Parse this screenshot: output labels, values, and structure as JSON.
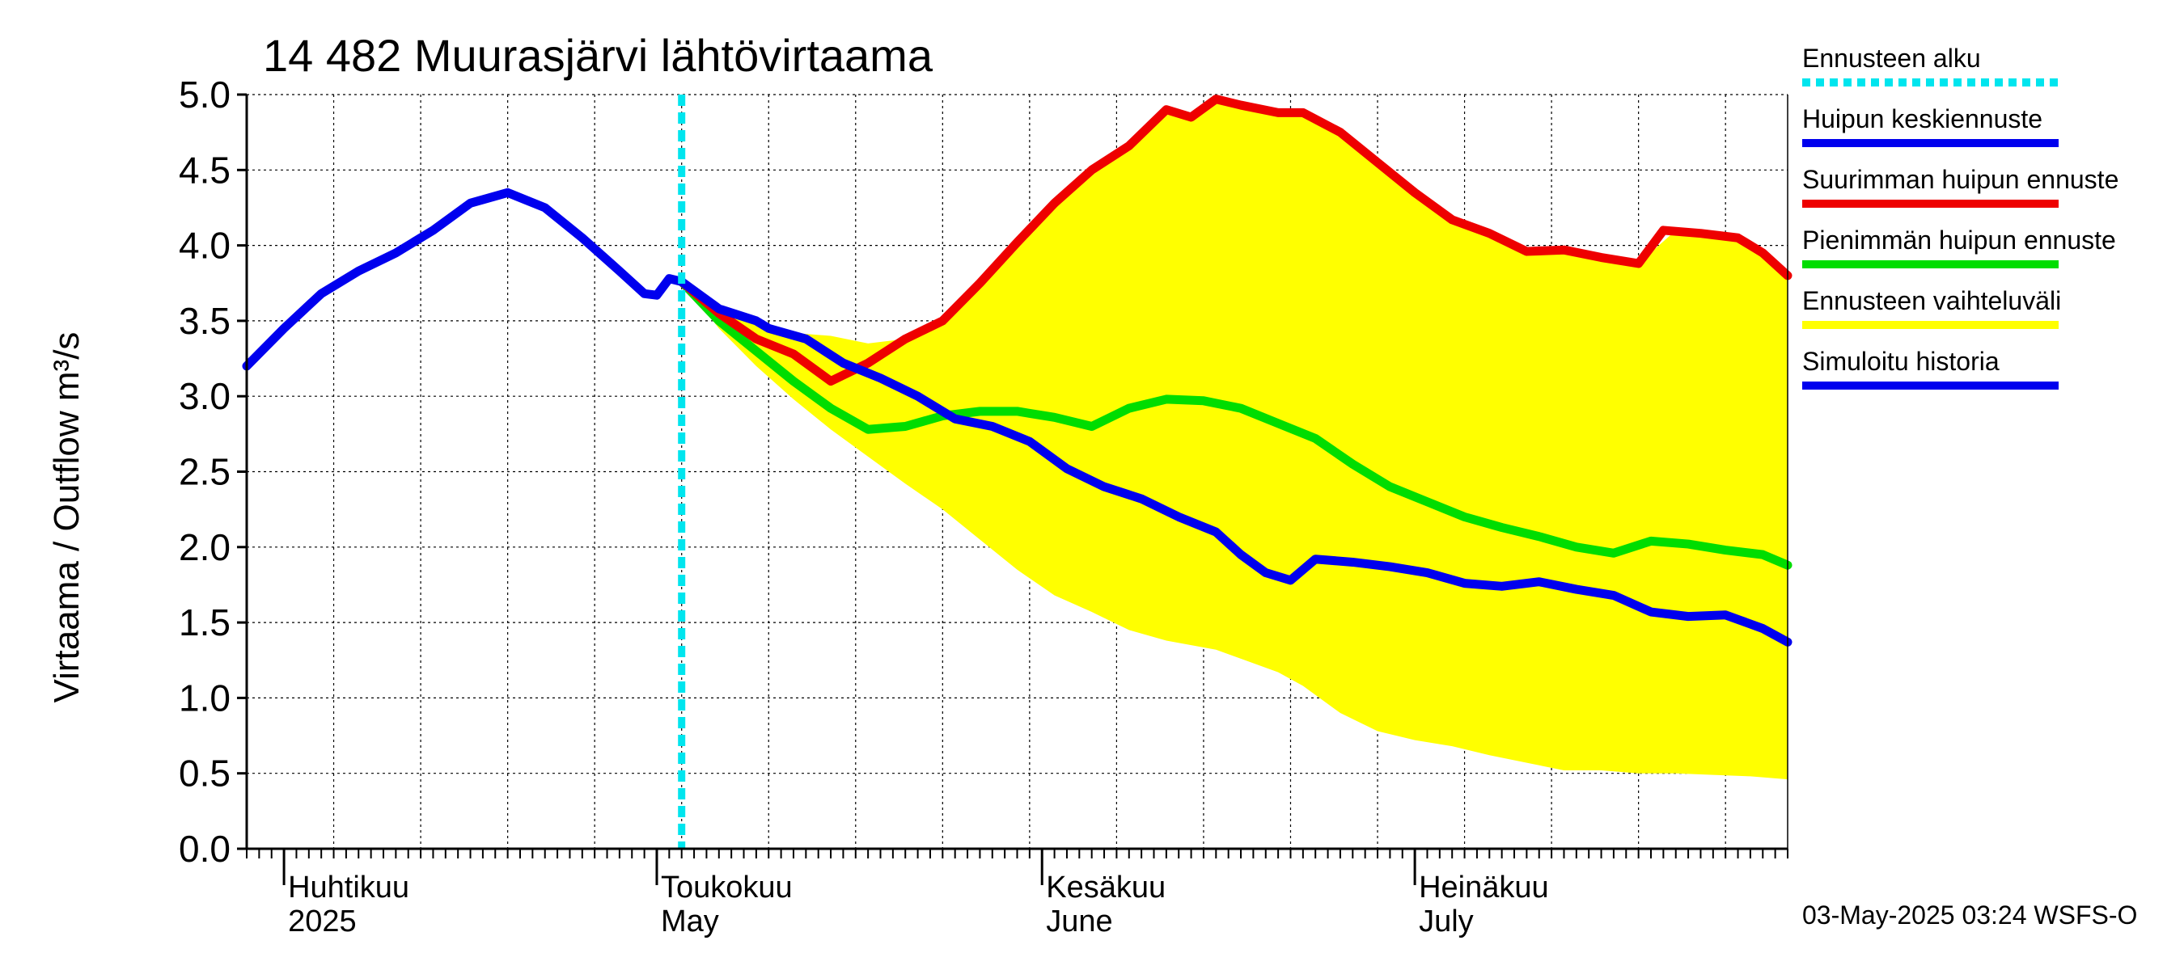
{
  "chart_data": {
    "type": "line",
    "title": "14 482 Muurasjärvi lähtövirtaama",
    "ylabel": "Virtaama / Outflow    m³/s",
    "xlabel": "",
    "ylim": [
      0.0,
      5.0
    ],
    "yticks": [
      "0.0",
      "0.5",
      "1.0",
      "1.5",
      "2.0",
      "2.5",
      "3.0",
      "3.5",
      "4.0",
      "4.5",
      "5.0"
    ],
    "x_range": [
      "2025-03-29",
      "2025-07-31"
    ],
    "x_is_date": true,
    "grid": true,
    "legend_position": "right",
    "months": [
      {
        "date": "2025-04-01",
        "fi": "Huhtikuu",
        "en": "2025"
      },
      {
        "date": "2025-05-01",
        "fi": "Toukokuu",
        "en": "May"
      },
      {
        "date": "2025-06-01",
        "fi": "Kesäkuu",
        "en": "June"
      },
      {
        "date": "2025-07-01",
        "fi": "Heinäkuu",
        "en": "July"
      }
    ],
    "forecast_start": "2025-05-03",
    "timestamp": "03-May-2025 03:24 WSFS-O",
    "legend": [
      {
        "label": "Ennusteen alku",
        "color": "#00e5ee",
        "style": "dotted"
      },
      {
        "label": "Huipun keskiennuste",
        "color": "#0000ee",
        "style": "solid"
      },
      {
        "label": "Suurimman huipun ennuste",
        "color": "#ee0000",
        "style": "solid"
      },
      {
        "label": "Pienimmän huipun ennuste",
        "color": "#00dd00",
        "style": "solid"
      },
      {
        "label": "Ennusteen vaihteluväli",
        "color": "#ffff00",
        "style": "band"
      },
      {
        "label": "Simuloitu historia",
        "color": "#0000ee",
        "style": "solid"
      }
    ],
    "series": [
      {
        "name": "Simuloitu historia",
        "color": "#0000ee",
        "x": [
          "2025-03-29",
          "2025-04-01",
          "2025-04-04",
          "2025-04-07",
          "2025-04-10",
          "2025-04-13",
          "2025-04-16",
          "2025-04-19",
          "2025-04-22",
          "2025-04-25",
          "2025-04-28",
          "2025-04-30",
          "2025-05-01",
          "2025-05-02",
          "2025-05-03"
        ],
        "y": [
          3.2,
          3.45,
          3.68,
          3.83,
          3.95,
          4.1,
          4.28,
          4.35,
          4.25,
          4.05,
          3.83,
          3.68,
          3.67,
          3.78,
          3.76
        ]
      },
      {
        "name": "Huipun keskiennuste",
        "color": "#0000ee",
        "x": [
          "2025-05-03",
          "2025-05-06",
          "2025-05-09",
          "2025-05-10",
          "2025-05-13",
          "2025-05-16",
          "2025-05-19",
          "2025-05-22",
          "2025-05-25",
          "2025-05-28",
          "2025-05-31",
          "2025-06-03",
          "2025-06-06",
          "2025-06-09",
          "2025-06-12",
          "2025-06-15",
          "2025-06-17",
          "2025-06-19",
          "2025-06-21",
          "2025-06-23",
          "2025-06-26",
          "2025-06-29",
          "2025-07-02",
          "2025-07-05",
          "2025-07-08",
          "2025-07-11",
          "2025-07-14",
          "2025-07-17",
          "2025-07-20",
          "2025-07-23",
          "2025-07-26",
          "2025-07-29",
          "2025-07-31"
        ],
        "y": [
          3.76,
          3.58,
          3.5,
          3.45,
          3.38,
          3.22,
          3.12,
          3.0,
          2.85,
          2.8,
          2.7,
          2.52,
          2.4,
          2.32,
          2.2,
          2.1,
          1.95,
          1.83,
          1.78,
          1.92,
          1.9,
          1.87,
          1.83,
          1.76,
          1.74,
          1.77,
          1.72,
          1.68,
          1.57,
          1.54,
          1.55,
          1.46,
          1.37
        ]
      },
      {
        "name": "Suurimman huipun ennuste",
        "color": "#ee0000",
        "x": [
          "2025-05-03",
          "2025-05-06",
          "2025-05-09",
          "2025-05-12",
          "2025-05-15",
          "2025-05-18",
          "2025-05-21",
          "2025-05-24",
          "2025-05-27",
          "2025-05-30",
          "2025-06-02",
          "2025-06-05",
          "2025-06-08",
          "2025-06-11",
          "2025-06-13",
          "2025-06-15",
          "2025-06-17",
          "2025-06-20",
          "2025-06-22",
          "2025-06-25",
          "2025-06-28",
          "2025-07-01",
          "2025-07-04",
          "2025-07-07",
          "2025-07-10",
          "2025-07-13",
          "2025-07-16",
          "2025-07-19",
          "2025-07-21",
          "2025-07-24",
          "2025-07-27",
          "2025-07-29",
          "2025-07-31"
        ],
        "y": [
          3.76,
          3.55,
          3.38,
          3.28,
          3.1,
          3.22,
          3.38,
          3.5,
          3.75,
          4.02,
          4.28,
          4.5,
          4.66,
          4.9,
          4.85,
          4.97,
          4.93,
          4.88,
          4.88,
          4.75,
          4.55,
          4.35,
          4.17,
          4.08,
          3.96,
          3.97,
          3.92,
          3.88,
          4.1,
          4.08,
          4.05,
          3.95,
          3.8
        ]
      },
      {
        "name": "Pienimmän huipun ennuste",
        "color": "#00dd00",
        "x": [
          "2025-05-03",
          "2025-05-06",
          "2025-05-09",
          "2025-05-12",
          "2025-05-15",
          "2025-05-18",
          "2025-05-21",
          "2025-05-24",
          "2025-05-27",
          "2025-05-30",
          "2025-06-02",
          "2025-06-05",
          "2025-06-08",
          "2025-06-11",
          "2025-06-14",
          "2025-06-17",
          "2025-06-20",
          "2025-06-23",
          "2025-06-26",
          "2025-06-29",
          "2025-07-02",
          "2025-07-05",
          "2025-07-08",
          "2025-07-11",
          "2025-07-14",
          "2025-07-17",
          "2025-07-20",
          "2025-07-23",
          "2025-07-26",
          "2025-07-29",
          "2025-07-31"
        ],
        "y": [
          3.76,
          3.5,
          3.3,
          3.1,
          2.92,
          2.78,
          2.8,
          2.87,
          2.9,
          2.9,
          2.86,
          2.8,
          2.92,
          2.98,
          2.97,
          2.92,
          2.82,
          2.72,
          2.55,
          2.4,
          2.3,
          2.2,
          2.13,
          2.07,
          2.0,
          1.96,
          2.04,
          2.02,
          1.98,
          1.95,
          1.88
        ]
      }
    ],
    "band": {
      "name": "Ennusteen vaihteluväli",
      "color": "#ffff00",
      "x": [
        "2025-05-03",
        "2025-05-06",
        "2025-05-09",
        "2025-05-12",
        "2025-05-15",
        "2025-05-18",
        "2025-05-21",
        "2025-05-24",
        "2025-05-27",
        "2025-05-30",
        "2025-06-02",
        "2025-06-05",
        "2025-06-08",
        "2025-06-11",
        "2025-06-13",
        "2025-06-15",
        "2025-06-17",
        "2025-06-20",
        "2025-06-22",
        "2025-06-25",
        "2025-06-28",
        "2025-07-01",
        "2025-07-04",
        "2025-07-07",
        "2025-07-10",
        "2025-07-13",
        "2025-07-16",
        "2025-07-19",
        "2025-07-22",
        "2025-07-25",
        "2025-07-28",
        "2025-07-31"
      ],
      "upper": [
        3.76,
        3.6,
        3.48,
        3.42,
        3.4,
        3.35,
        3.38,
        3.5,
        3.75,
        4.02,
        4.28,
        4.5,
        4.66,
        4.9,
        4.85,
        4.97,
        4.93,
        4.88,
        4.88,
        4.75,
        4.55,
        4.35,
        4.17,
        4.08,
        3.96,
        3.97,
        3.92,
        3.88,
        4.1,
        4.08,
        4.0,
        3.8
      ],
      "lower": [
        3.76,
        3.45,
        3.2,
        2.98,
        2.78,
        2.6,
        2.42,
        2.25,
        2.05,
        1.85,
        1.68,
        1.57,
        1.45,
        1.38,
        1.35,
        1.32,
        1.26,
        1.17,
        1.08,
        0.9,
        0.78,
        0.72,
        0.68,
        0.62,
        0.57,
        0.52,
        0.52,
        0.5,
        0.5,
        0.49,
        0.48,
        0.46
      ]
    }
  }
}
